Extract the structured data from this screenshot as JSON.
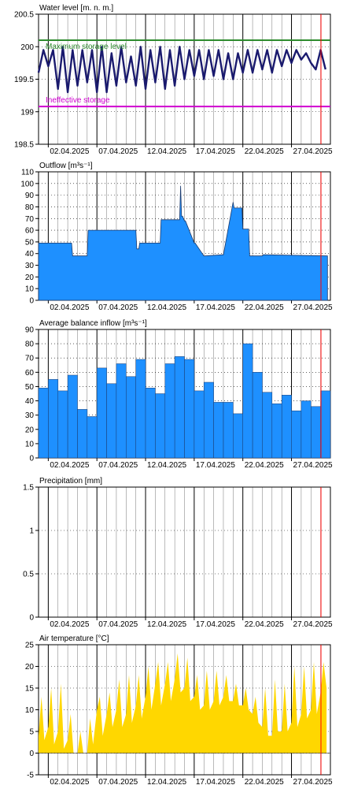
{
  "colors": {
    "grid_minor": "#000000",
    "grid_major": "#000000",
    "today_line": "#ff0000",
    "water_level_line": "#1a1a6e",
    "max_storage_line": "#2e8b2e",
    "ineffective_storage_line": "#d000d0",
    "bar_fill": "#1e90ff",
    "temp_fill": "#ffd700"
  },
  "x_dates": [
    "02.04.2025",
    "07.04.2025",
    "12.04.2025",
    "17.04.2025",
    "22.04.2025",
    "27.04.2025"
  ],
  "chart_data": [
    {
      "type": "line",
      "title": "Water level [m. n. m.]",
      "ylim": [
        198.5,
        200.5
      ],
      "yticks": [
        "200.5",
        "200",
        "199.5",
        "199",
        "198.5"
      ],
      "ytick_values": [
        200.5,
        200,
        199.5,
        199,
        198.5
      ],
      "x_range_days": [
        1,
        31
      ],
      "reference_lines": [
        {
          "name": "Maximum storage level",
          "value": 200.1,
          "color": "#2e8b2e"
        },
        {
          "name": "Ineffective storage",
          "value": 199.08,
          "color": "#d000d0"
        }
      ],
      "series": [
        {
          "x": [
            1.0,
            1.5,
            2.0,
            2.5,
            3.0,
            3.5,
            4.0,
            4.5,
            5.0,
            5.5,
            6.0,
            6.5,
            7.0,
            7.5,
            8.0,
            8.5,
            9.0,
            9.5,
            10.0,
            10.5,
            11.0,
            11.5,
            12.0,
            12.5,
            13.0,
            13.5,
            14.0,
            14.5,
            15.0,
            15.5,
            16.0,
            16.5,
            17.0,
            17.5,
            18.0,
            18.5,
            19.0,
            19.5,
            20.0,
            20.5,
            21.0,
            21.5,
            22.0,
            22.5,
            23.0,
            23.5,
            24.0,
            24.5,
            25.0,
            25.5,
            26.0,
            26.5,
            27.0,
            27.5,
            28.0,
            28.5,
            29.0,
            29.5,
            30.0,
            30.5
          ],
          "y": [
            199.6,
            199.95,
            199.7,
            199.95,
            199.35,
            200.0,
            199.3,
            199.95,
            199.4,
            199.95,
            199.45,
            199.95,
            199.3,
            200.0,
            199.3,
            199.9,
            199.4,
            200.0,
            199.45,
            199.85,
            199.4,
            200.0,
            199.35,
            199.95,
            199.45,
            200.0,
            199.35,
            199.95,
            199.4,
            200.0,
            199.5,
            199.95,
            199.55,
            199.95,
            199.5,
            199.95,
            199.55,
            199.95,
            199.5,
            199.9,
            199.5,
            199.9,
            199.6,
            199.95,
            199.6,
            199.95,
            199.65,
            199.95,
            199.6,
            199.95,
            199.7,
            199.95,
            199.75,
            199.95,
            199.8,
            199.9,
            199.75,
            199.65,
            199.95,
            199.65
          ]
        }
      ]
    },
    {
      "type": "area",
      "title": "Outflow [m³s⁻¹]",
      "ylim": [
        0,
        110
      ],
      "yticks": [
        "110",
        "100",
        "90",
        "80",
        "70",
        "60",
        "50",
        "40",
        "30",
        "20",
        "10",
        "0"
      ],
      "ytick_values": [
        110,
        100,
        90,
        80,
        70,
        60,
        50,
        40,
        30,
        20,
        10,
        0
      ],
      "x_range_days": [
        1,
        31
      ],
      "series": [
        {
          "x": [
            1.0,
            4.4,
            4.5,
            6.0,
            6.1,
            11.0,
            11.1,
            11.3,
            11.4,
            13.5,
            13.6,
            15.5,
            15.6,
            15.7,
            15.8,
            16.0,
            16.1,
            17.0,
            17.1,
            18.0,
            18.1,
            19.9,
            20.0,
            21.0,
            21.1,
            21.9,
            22.0,
            22.6,
            22.7,
            24.0,
            24.1,
            30.7
          ],
          "y": [
            49,
            49,
            38,
            38,
            60,
            60,
            44,
            44,
            49,
            49,
            69,
            69,
            98,
            72,
            72,
            68,
            68,
            49,
            49,
            38,
            38,
            39,
            39,
            84,
            79,
            79,
            61,
            61,
            38,
            38,
            39,
            38
          ]
        }
      ]
    },
    {
      "type": "bar",
      "title": "Average balance inflow  [m³s⁻¹]",
      "ylim": [
        0,
        90
      ],
      "yticks": [
        "90",
        "80",
        "70",
        "60",
        "50",
        "40",
        "30",
        "20",
        "10",
        "0"
      ],
      "ytick_values": [
        90,
        80,
        70,
        60,
        50,
        40,
        30,
        20,
        10,
        0
      ],
      "x_range_days": [
        1,
        31
      ],
      "x": [
        1,
        2,
        3,
        4,
        5,
        6,
        7,
        8,
        9,
        10,
        11,
        12,
        13,
        14,
        15,
        16,
        17,
        18,
        19,
        20,
        21,
        22,
        23,
        24,
        25,
        26,
        27,
        28,
        29,
        30
      ],
      "values": [
        49,
        55,
        47,
        58,
        34,
        29,
        63,
        52,
        66,
        57,
        69,
        49,
        45,
        66,
        71,
        69,
        47,
        53,
        39,
        39,
        31,
        80,
        60,
        46,
        38,
        44,
        33,
        40,
        36,
        47
      ]
    },
    {
      "type": "bar",
      "title": "Precipitation [mm]",
      "ylim": [
        0,
        1.5
      ],
      "yticks": [
        "1.5",
        "1",
        "0.5",
        "0"
      ],
      "ytick_values": [
        1.5,
        1,
        0.5,
        0
      ],
      "x_range_days": [
        1,
        31
      ],
      "x": [],
      "values": []
    },
    {
      "type": "area",
      "title": "Air temperature [°C]",
      "ylim": [
        -5,
        25
      ],
      "yticks": [
        "25",
        "20",
        "15",
        "10",
        "5",
        "0",
        "-5"
      ],
      "ytick_values": [
        25,
        20,
        15,
        10,
        5,
        0,
        -5
      ],
      "x_range_days": [
        1,
        31
      ],
      "series": [
        {
          "x": [
            1.0,
            1.3,
            1.6,
            2.0,
            2.3,
            2.6,
            3.0,
            3.3,
            3.6,
            4.0,
            4.3,
            4.6,
            5.0,
            5.3,
            5.6,
            6.0,
            6.3,
            6.6,
            7.0,
            7.3,
            7.6,
            8.0,
            8.3,
            8.6,
            9.0,
            9.3,
            9.6,
            10.0,
            10.3,
            10.6,
            11.0,
            11.3,
            11.6,
            12.0,
            12.3,
            12.6,
            13.0,
            13.3,
            13.6,
            14.0,
            14.3,
            14.6,
            15.0,
            15.3,
            15.6,
            16.0,
            16.3,
            16.6,
            17.0,
            17.3,
            17.6,
            18.0,
            18.3,
            18.6,
            19.0,
            19.3,
            19.6,
            20.0,
            20.3,
            20.6,
            21.0,
            21.3,
            21.6,
            22.0,
            22.3,
            22.6,
            23.0,
            23.3,
            23.6,
            24.0,
            24.3,
            24.6,
            25.0,
            25.3,
            25.6,
            26.0,
            26.3,
            26.6,
            27.0,
            27.3,
            27.6,
            28.0,
            28.3,
            28.6,
            29.0,
            29.3,
            29.6,
            30.0,
            30.3,
            30.6
          ],
          "y": [
            4,
            13,
            3,
            6,
            15,
            2,
            5,
            16,
            1,
            3,
            9,
            0,
            0,
            5,
            0,
            0,
            8,
            2,
            10,
            13,
            4,
            9,
            14,
            6,
            10,
            17,
            6,
            9,
            18,
            7,
            11,
            18,
            8,
            13,
            20,
            10,
            16,
            21,
            11,
            16,
            21,
            12,
            17,
            23,
            14,
            15,
            22,
            12,
            13,
            18,
            10,
            11,
            19,
            10,
            12,
            19,
            11,
            13,
            18,
            12,
            12,
            16,
            11,
            11,
            15,
            10,
            9,
            13,
            7,
            6,
            15,
            4,
            4,
            17,
            5,
            5,
            16,
            5,
            7,
            20,
            6,
            9,
            20,
            8,
            10,
            21,
            9,
            14,
            21,
            15
          ]
        }
      ]
    }
  ]
}
